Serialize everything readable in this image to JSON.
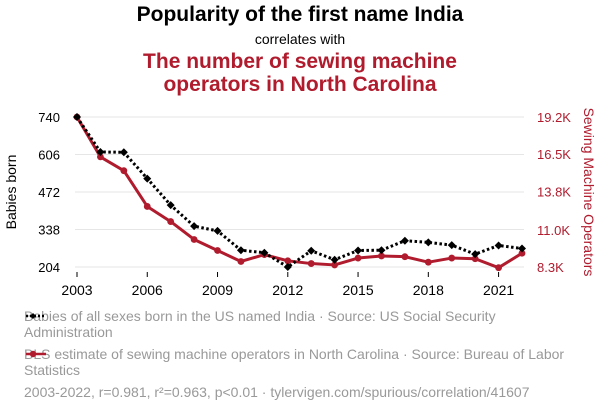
{
  "header": {
    "title": "Popularity of the first name India",
    "subtitle": "correlates with",
    "title2_line1": "The number of sewing machine",
    "title2_line2": "operators in North Carolina"
  },
  "chart_data": {
    "type": "line",
    "x": [
      2003,
      2004,
      2005,
      2006,
      2007,
      2008,
      2009,
      2010,
      2011,
      2012,
      2013,
      2014,
      2015,
      2016,
      2017,
      2018,
      2019,
      2020,
      2021,
      2022
    ],
    "xticks": [
      "2003",
      "2006",
      "2009",
      "2012",
      "2015",
      "2018",
      "2021"
    ],
    "xlim": [
      2003,
      2022
    ],
    "series": [
      {
        "name": "Babies of all sexes born in the US named India · Source: US Social Security Administration",
        "axis": "left",
        "color": "#000000",
        "style": "dotted",
        "marker": "diamond",
        "values": [
          740,
          615,
          614,
          520,
          425,
          350,
          333,
          264,
          255,
          204,
          262,
          230,
          263,
          264,
          298,
          292,
          282,
          250,
          281,
          270
        ]
      },
      {
        "name": "BLS estimate of sewing machine operators in North Carolina · Source: Bureau of Labor Statistics",
        "axis": "right",
        "color": "#b01c2e",
        "style": "solid",
        "marker": "circle",
        "values": [
          19200,
          16300,
          15300,
          12700,
          11600,
          10300,
          9500,
          8700,
          9200,
          8750,
          8550,
          8450,
          8950,
          9100,
          9050,
          8650,
          8950,
          8900,
          8250,
          9300
        ]
      }
    ],
    "left_axis": {
      "label": "Babies born",
      "ticks": [
        204,
        338,
        472,
        606,
        740
      ],
      "tick_labels": [
        "204",
        "338",
        "472",
        "606",
        "740"
      ],
      "range": [
        204,
        740
      ]
    },
    "right_axis": {
      "label": "Sewing Machine Operators",
      "ticks": [
        8300,
        11000,
        13800,
        16500,
        19200
      ],
      "tick_labels": [
        "8.3K",
        "11.0K",
        "13.8K",
        "16.5K",
        "19.2K"
      ],
      "range": [
        8300,
        19200
      ]
    }
  },
  "legend": {
    "item1_text": "Babies of all sexes born in the US named India · Source: US Social Security Administration",
    "item2_text": "BLS estimate of sewing machine operators in North Carolina · Source: Bureau of Labor Statistics"
  },
  "footer": {
    "text": "2003-2022, r=0.981, r²=0.963, p<0.01 · tylervigen.com/spurious/correlation/41607"
  },
  "colors": {
    "black_series": "#000000",
    "red_series": "#b01c2e",
    "muted_text": "#999999",
    "grid": "#e6e6e6"
  }
}
